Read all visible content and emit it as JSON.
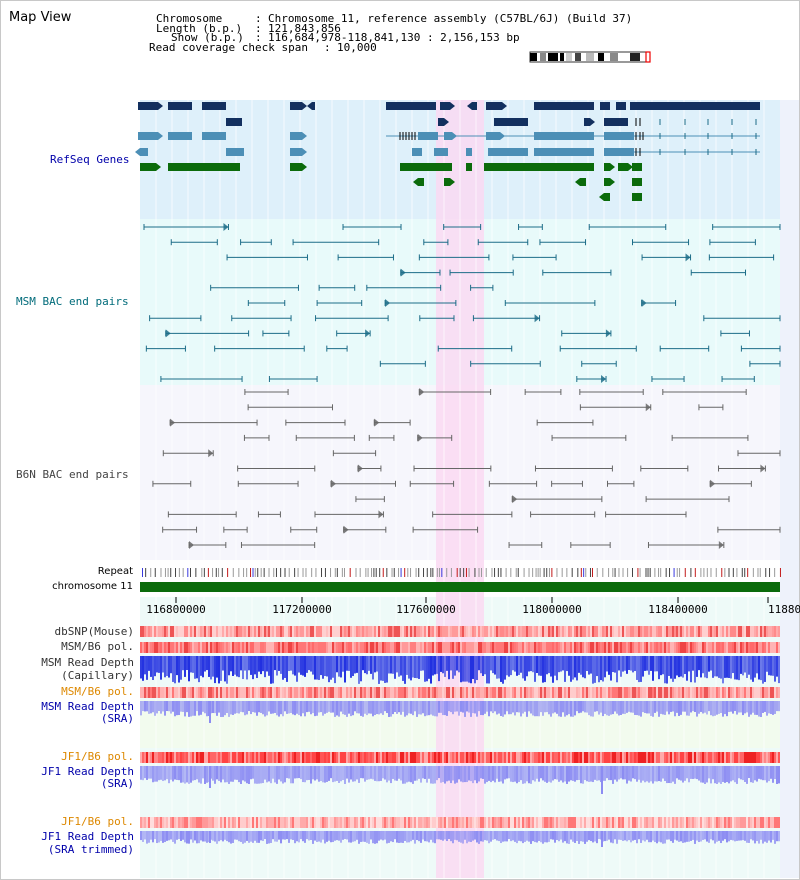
{
  "header": {
    "title": "Map View",
    "chromosome_key": "Chromosome",
    "chromosome_value": "Chromosome 11, reference assembly (C57BL/6J) (Build 37)",
    "length_key": "Length (b.p.)",
    "length_value": "121,843,856",
    "show_key": "Show (b.p.)",
    "show_value": "116,684,978-118,841,130 : 2,156,153 bp",
    "coverage_key": "Read coverage check span",
    "coverage_value": "10,000"
  },
  "tracks": {
    "refseq": "RefSeq Genes",
    "msm_bac": "MSM BAC end pairs",
    "b6n_bac": "B6N BAC end pairs",
    "repeat": "Repeat",
    "chromosome": "chromosome 11",
    "dbsnp": "dbSNP(Mouse)",
    "msm_b6_pol_1": "MSM/B6 pol.",
    "msm_read_depth_cap_1": "MSM Read Depth",
    "msm_read_depth_cap_2": "(Capillary)",
    "msm_b6_pol_2": "MSM/B6 pol.",
    "msm_read_depth_sra_1": "MSM Read Depth",
    "msm_read_depth_sra_2": "(SRA)",
    "jf1_b6_pol_1": "JF1/B6 pol.",
    "jf1_read_depth_sra_1": "JF1 Read Depth",
    "jf1_read_depth_sra_2": "(SRA)",
    "jf1_b6_pol_2": "JF1/B6 pol.",
    "jf1_read_depth_trim_1": "JF1 Read Depth",
    "jf1_read_depth_trim_2": "(SRA trimmed)"
  },
  "axis": {
    "ticks": [
      "116800000",
      "117200000",
      "117600000",
      "118000000",
      "118400000",
      "11880"
    ]
  },
  "colors": {
    "refseq_bg": "#def0fa",
    "bac_bg": "#e8fafa",
    "b6n_bg": "#f6f6fc",
    "highlight": "#fad9f2",
    "navy_gene": "#13305f",
    "steel_gene": "#4c8fb6",
    "green_gene": "#0b6b0b",
    "msm_bac": "#1d6d88",
    "b6n_bac": "#666666",
    "chromosome_bar": "#0b6b0b",
    "label_blue": "#0000aa",
    "label_teal": "#006b7a",
    "label_orange": "#dd8800",
    "depth_blue": "#1f2ee0",
    "depth_light": "#8c8cf2"
  }
}
